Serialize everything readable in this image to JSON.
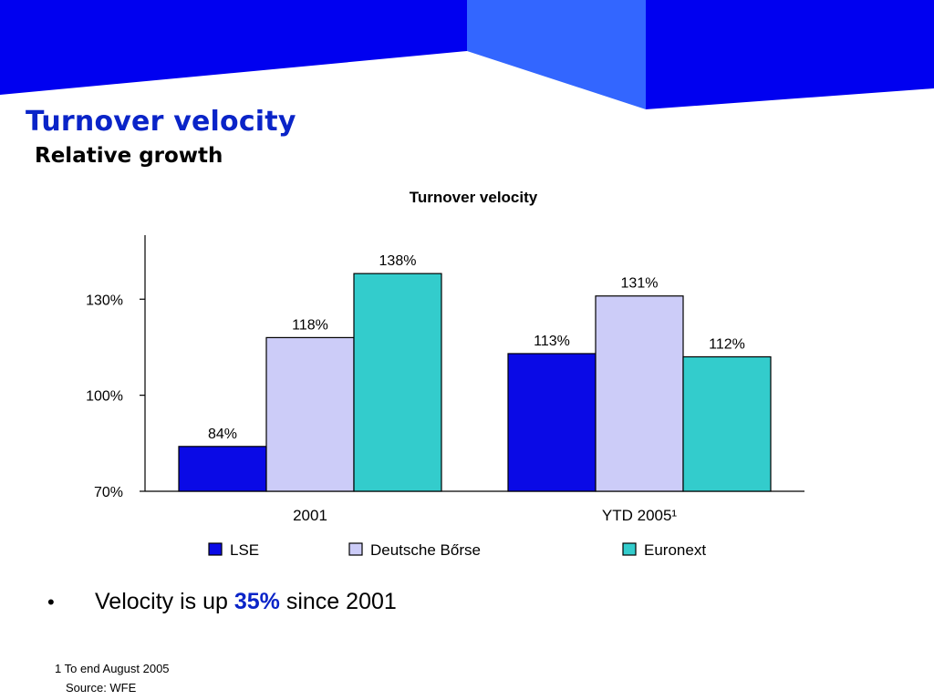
{
  "slide": {
    "title": "Turnover velocity",
    "subtitle": "Relative growth"
  },
  "colors": {
    "banner_dark": "#0000f0",
    "banner_light": "#3366ff",
    "title": "#0a24c8",
    "lse": "#0a0ae6",
    "deutsche_borse": "#ccccf8",
    "euronext": "#33cccc"
  },
  "chart_data": {
    "type": "bar",
    "title": "Turnover velocity",
    "categories": [
      "2001",
      "YTD 2005¹"
    ],
    "series": [
      {
        "name": "LSE",
        "values": [
          84,
          113
        ],
        "labels": [
          "84%",
          "113%"
        ],
        "color": "#0a0ae6"
      },
      {
        "name": "Deutsche Bőrse",
        "values": [
          118,
          131
        ],
        "labels": [
          "118%",
          "131%"
        ],
        "color": "#ccccf8"
      },
      {
        "name": "Euronext",
        "values": [
          138,
          112
        ],
        "labels": [
          "138%",
          "112%"
        ],
        "color": "#33cccc"
      }
    ],
    "yticks": [
      70,
      100,
      130
    ],
    "ytick_labels": [
      "70%",
      "100%",
      "130%"
    ],
    "ylim": [
      70,
      150
    ],
    "grid": false,
    "legend_position": "bottom"
  },
  "bullet": {
    "pre": "Velocity is up ",
    "highlight": "35%",
    "post": " since 2001"
  },
  "footnote": "1 To end August 2005",
  "source": "Source: WFE"
}
